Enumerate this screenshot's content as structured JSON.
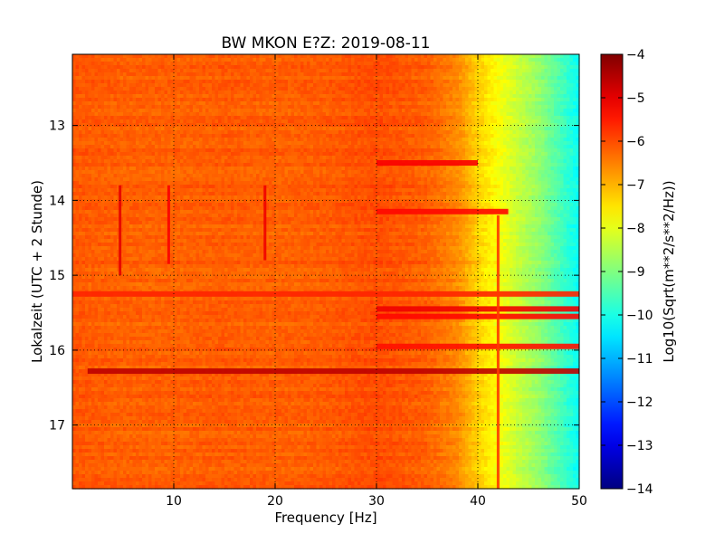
{
  "chart_data": {
    "type": "heatmap",
    "title": "BW MKON E?Z: 2019-08-11",
    "xlabel": "Frequency [Hz]",
    "ylabel": "Lokalzeit (UTC + 2 Stunde)",
    "xlim": [
      0,
      50
    ],
    "ylim": [
      12.05,
      17.85
    ],
    "y_inverted": true,
    "grid": true,
    "x_ticks": [
      10,
      20,
      30,
      40,
      50
    ],
    "y_ticks": [
      13,
      14,
      15,
      16,
      17
    ],
    "colorbar": {
      "label": "Log10(Sqrt(m**2/s**2/Hz))",
      "range": [
        -14,
        -4
      ],
      "ticks": [
        -4,
        -5,
        -6,
        -7,
        -8,
        -9,
        -10,
        -11,
        -12,
        -13,
        -14
      ],
      "colormap": "jet"
    },
    "spectral_profile": {
      "frequency_hz": [
        0,
        5,
        10,
        15,
        20,
        25,
        30,
        35,
        38,
        40,
        42,
        44,
        46,
        48,
        50
      ],
      "log_amplitude": [
        -6.1,
        -6.2,
        -6.2,
        -6.15,
        -6.2,
        -6.15,
        -6.0,
        -6.2,
        -6.6,
        -7.3,
        -7.8,
        -8.3,
        -8.8,
        -9.5,
        -10.2
      ]
    },
    "horizontal_events": [
      {
        "time": 13.5,
        "fmin": 30,
        "fmax": 40,
        "log_amplitude": -5.2
      },
      {
        "time": 14.15,
        "fmin": 30,
        "fmax": 43,
        "log_amplitude": -5.3
      },
      {
        "time": 15.25,
        "fmin": 0,
        "fmax": 50,
        "log_amplitude": -5.6
      },
      {
        "time": 15.45,
        "fmin": 30,
        "fmax": 50,
        "log_amplitude": -5.1
      },
      {
        "time": 15.55,
        "fmin": 30,
        "fmax": 50,
        "log_amplitude": -5.3
      },
      {
        "time": 15.95,
        "fmin": 30,
        "fmax": 50,
        "log_amplitude": -5.4
      },
      {
        "time": 16.28,
        "fmin": 1.5,
        "fmax": 50,
        "log_amplitude": -4.6
      }
    ],
    "vertical_events": [
      {
        "frequency": 4.7,
        "tmin": 13.8,
        "tmax": 15.0,
        "log_amplitude": -5.0
      },
      {
        "frequency": 9.5,
        "tmin": 13.8,
        "tmax": 14.85,
        "log_amplitude": -5.2
      },
      {
        "frequency": 19.0,
        "tmin": 13.8,
        "tmax": 14.8,
        "log_amplitude": -5.1
      },
      {
        "frequency": 42.0,
        "tmin": 14.2,
        "tmax": 17.85,
        "log_amplitude": -5.8
      }
    ]
  }
}
